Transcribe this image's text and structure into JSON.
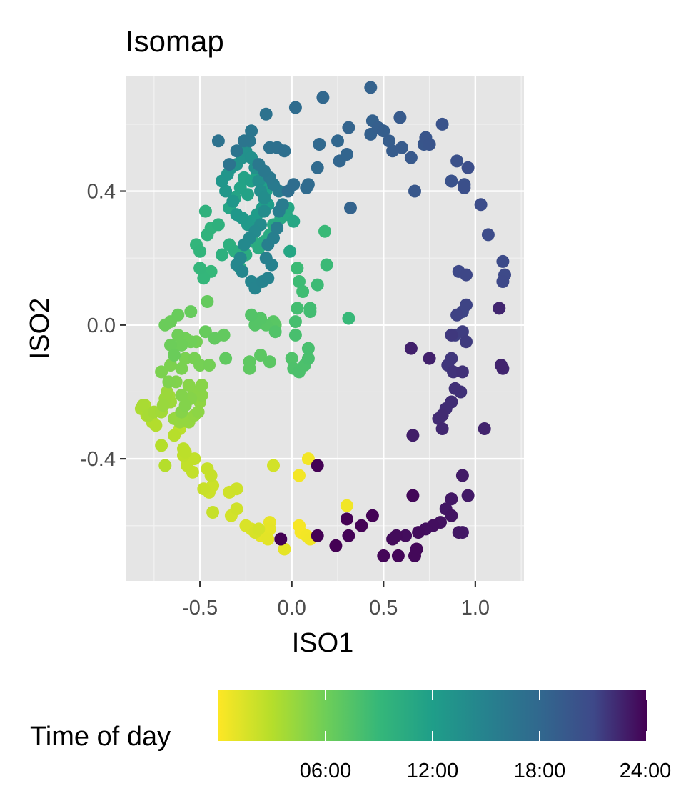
{
  "chart_data": {
    "type": "scatter",
    "title": "Isomap",
    "xlabel": "ISO1",
    "ylabel": "ISO2",
    "xlim": [
      -0.905,
      1.265
    ],
    "ylim": [
      -0.765,
      0.745
    ],
    "x_ticks": [
      -0.5,
      0.0,
      0.5,
      1.0
    ],
    "x_tick_labels": [
      "-0.5",
      "0.0",
      "0.5",
      "1.0"
    ],
    "y_ticks": [
      -0.4,
      0.0,
      0.4
    ],
    "y_tick_labels": [
      "-0.4",
      "0.0",
      "0.4"
    ],
    "grid": true,
    "background": "#e5e5e5",
    "legend": {
      "title": "Time of day",
      "position": "bottom",
      "type": "colorbar",
      "scale": "viridis (reversed: early = yellow, late = dark purple)",
      "range_hours": [
        0,
        24
      ],
      "breaks_hours": [
        6,
        12,
        18,
        24
      ],
      "break_labels": [
        "06:00",
        "12:00",
        "18:00",
        "24:00"
      ]
    },
    "colors": {
      "yellow": "#fde725",
      "green": "#22b85e",
      "teal": "#21908d",
      "blue": "#1e4e7f",
      "purple": "#440154"
    },
    "points_x_y_hour": [
      [
        0.04,
        -0.6,
        0.3
      ],
      [
        0.05,
        -0.62,
        0.3
      ],
      [
        0.08,
        -0.63,
        0.4
      ],
      [
        0.1,
        -0.64,
        0.5
      ],
      [
        0.09,
        -0.4,
        0.4
      ],
      [
        0.04,
        -0.45,
        0.4
      ],
      [
        0.3,
        -0.54,
        0.5
      ],
      [
        -0.12,
        -0.59,
        0.9
      ],
      [
        -0.12,
        -0.61,
        1.0
      ],
      [
        -0.17,
        -0.63,
        1.0
      ],
      [
        -0.04,
        -0.67,
        1.0
      ],
      [
        -0.13,
        -0.64,
        1.1
      ],
      [
        -0.22,
        -0.61,
        1.4
      ],
      [
        -0.25,
        -0.6,
        1.5
      ],
      [
        -0.2,
        -0.62,
        1.6
      ],
      [
        -0.18,
        -0.61,
        1.7
      ],
      [
        -0.1,
        -0.42,
        1.8
      ],
      [
        -0.33,
        -0.57,
        1.8
      ],
      [
        -0.3,
        -0.55,
        1.9
      ],
      [
        -0.34,
        -0.5,
        1.9
      ],
      [
        -0.3,
        -0.49,
        2.0
      ],
      [
        -0.43,
        -0.48,
        2.1
      ],
      [
        -0.45,
        -0.5,
        2.1
      ],
      [
        -0.48,
        -0.49,
        2.2
      ],
      [
        -0.44,
        -0.45,
        2.3
      ],
      [
        -0.43,
        -0.56,
        2.3
      ],
      [
        -0.46,
        -0.43,
        2.3
      ],
      [
        -0.54,
        -0.44,
        2.4
      ],
      [
        -0.57,
        -0.42,
        2.5
      ],
      [
        -0.53,
        -0.4,
        2.5
      ],
      [
        -0.59,
        -0.39,
        2.6
      ],
      [
        -0.58,
        -0.38,
        2.7
      ],
      [
        -0.59,
        -0.37,
        2.7
      ],
      [
        -0.61,
        -0.31,
        2.8
      ],
      [
        -0.64,
        -0.33,
        2.9
      ],
      [
        -0.69,
        -0.42,
        3.0
      ],
      [
        -0.71,
        -0.36,
        3.0
      ],
      [
        -0.74,
        -0.3,
        3.1
      ],
      [
        -0.76,
        -0.29,
        3.1
      ],
      [
        -0.79,
        -0.27,
        3.2
      ],
      [
        -0.8,
        -0.24,
        3.3
      ],
      [
        -0.82,
        -0.25,
        3.4
      ],
      [
        -0.81,
        -0.24,
        3.5
      ],
      [
        -0.78,
        -0.27,
        3.6
      ],
      [
        -0.75,
        -0.26,
        3.7
      ],
      [
        -0.71,
        -0.26,
        3.8
      ],
      [
        -0.67,
        -0.21,
        3.9
      ],
      [
        -0.66,
        -0.23,
        4.0
      ],
      [
        -0.68,
        -0.2,
        4.1
      ],
      [
        -0.69,
        -0.22,
        4.1
      ],
      [
        -0.7,
        -0.24,
        4.2
      ],
      [
        -0.64,
        -0.28,
        4.3
      ],
      [
        -0.61,
        -0.29,
        4.3
      ],
      [
        -0.59,
        -0.28,
        4.4
      ],
      [
        -0.56,
        -0.29,
        4.4
      ],
      [
        -0.53,
        -0.27,
        4.5
      ],
      [
        -0.5,
        -0.23,
        4.6
      ],
      [
        -0.51,
        -0.26,
        4.7
      ],
      [
        -0.49,
        -0.21,
        4.8
      ],
      [
        -0.53,
        -0.2,
        4.8
      ],
      [
        -0.56,
        -0.18,
        4.9
      ],
      [
        -0.49,
        -0.18,
        4.9
      ],
      [
        -0.55,
        -0.22,
        5.0
      ],
      [
        -0.6,
        -0.26,
        5.0
      ],
      [
        -0.58,
        -0.24,
        5.1
      ],
      [
        -0.6,
        -0.21,
        5.1
      ],
      [
        -0.63,
        -0.17,
        5.2
      ],
      [
        -0.67,
        -0.17,
        5.3
      ],
      [
        -0.71,
        -0.14,
        5.4
      ],
      [
        -0.66,
        -0.12,
        5.4
      ],
      [
        -0.6,
        -0.13,
        5.5
      ],
      [
        -0.58,
        -0.1,
        5.5
      ],
      [
        -0.53,
        -0.1,
        5.6
      ],
      [
        -0.5,
        -0.12,
        5.7
      ],
      [
        -0.45,
        -0.12,
        5.8
      ],
      [
        -0.52,
        -0.05,
        5.8
      ],
      [
        -0.55,
        -0.05,
        5.9
      ],
      [
        -0.58,
        -0.04,
        5.9
      ],
      [
        -0.6,
        -0.06,
        6.0
      ],
      [
        -0.62,
        -0.03,
        6.0
      ],
      [
        -0.66,
        -0.06,
        6.1
      ],
      [
        -0.64,
        -0.09,
        6.2
      ],
      [
        -0.69,
        0.0,
        6.2
      ],
      [
        -0.66,
        0.01,
        6.2
      ],
      [
        -0.62,
        0.03,
        6.3
      ],
      [
        -0.55,
        0.04,
        6.4
      ],
      [
        -0.47,
        -0.02,
        6.4
      ],
      [
        -0.46,
        0.07,
        6.5
      ],
      [
        -0.42,
        -0.04,
        6.6
      ],
      [
        -0.37,
        -0.03,
        6.6
      ],
      [
        -0.36,
        -0.1,
        6.7
      ],
      [
        -0.23,
        -0.13,
        6.8
      ],
      [
        -0.23,
        -0.11,
        6.8
      ],
      [
        -0.17,
        -0.09,
        6.9
      ],
      [
        -0.12,
        -0.11,
        7.0
      ],
      [
        -0.09,
        0.0,
        7.0
      ],
      [
        -0.1,
        0.01,
        7.1
      ],
      [
        -0.14,
        0.0,
        7.2
      ],
      [
        -0.17,
        0.02,
        7.3
      ],
      [
        -0.2,
        0.0,
        7.3
      ],
      [
        -0.22,
        0.03,
        7.4
      ],
      [
        -0.09,
        -0.02,
        7.5
      ],
      [
        0.0,
        -0.1,
        7.6
      ],
      [
        0.01,
        -0.13,
        7.7
      ],
      [
        0.04,
        -0.14,
        7.8
      ],
      [
        0.07,
        -0.12,
        7.8
      ],
      [
        0.09,
        -0.1,
        7.9
      ],
      [
        0.09,
        -0.07,
        8.0
      ],
      [
        0.02,
        -0.03,
        8.0
      ],
      [
        0.02,
        0.01,
        8.1
      ],
      [
        0.03,
        0.05,
        8.2
      ],
      [
        0.1,
        0.04,
        8.3
      ],
      [
        0.1,
        0.05,
        8.3
      ],
      [
        0.06,
        0.1,
        8.4
      ],
      [
        0.04,
        0.13,
        8.5
      ],
      [
        0.03,
        0.17,
        8.6
      ],
      [
        0.14,
        0.12,
        8.6
      ],
      [
        0.19,
        0.18,
        8.7
      ],
      [
        0.18,
        0.28,
        8.8
      ],
      [
        0.31,
        0.02,
        8.9
      ],
      [
        -0.44,
        0.16,
        9.0
      ],
      [
        -0.48,
        0.14,
        9.1
      ],
      [
        -0.5,
        0.17,
        9.2
      ],
      [
        -0.52,
        0.24,
        9.3
      ],
      [
        -0.5,
        0.22,
        9.4
      ],
      [
        -0.46,
        0.27,
        9.5
      ],
      [
        -0.44,
        0.29,
        9.6
      ],
      [
        -0.47,
        0.34,
        9.7
      ],
      [
        -0.4,
        0.3,
        9.8
      ],
      [
        -0.38,
        0.21,
        9.9
      ],
      [
        -0.34,
        0.24,
        10.0
      ],
      [
        -0.31,
        0.22,
        10.1
      ],
      [
        -0.28,
        0.17,
        10.2
      ],
      [
        -0.25,
        0.21,
        10.3
      ],
      [
        -0.21,
        0.25,
        10.3
      ],
      [
        -0.18,
        0.23,
        10.4
      ],
      [
        -0.15,
        0.25,
        10.5
      ],
      [
        -0.12,
        0.27,
        10.6
      ],
      [
        -0.1,
        0.3,
        10.7
      ],
      [
        -0.06,
        0.32,
        10.8
      ],
      [
        -0.03,
        0.33,
        10.9
      ],
      [
        -0.02,
        0.35,
        11.0
      ],
      [
        0.01,
        0.31,
        11.0
      ],
      [
        -0.01,
        0.22,
        11.1
      ],
      [
        -0.34,
        0.35,
        11.2
      ],
      [
        -0.31,
        0.38,
        11.3
      ],
      [
        -0.28,
        0.41,
        11.4
      ],
      [
        -0.26,
        0.44,
        11.5
      ],
      [
        -0.24,
        0.39,
        11.5
      ],
      [
        -0.22,
        0.43,
        11.6
      ],
      [
        -0.19,
        0.45,
        11.7
      ],
      [
        -0.16,
        0.42,
        11.7
      ],
      [
        -0.14,
        0.4,
        11.8
      ],
      [
        -0.12,
        0.42,
        11.9
      ],
      [
        -0.13,
        0.36,
        12.0
      ],
      [
        -0.16,
        0.35,
        12.1
      ],
      [
        -0.19,
        0.33,
        12.2
      ],
      [
        -0.22,
        0.31,
        12.3
      ],
      [
        -0.24,
        0.3,
        12.4
      ],
      [
        -0.27,
        0.32,
        12.5
      ],
      [
        -0.3,
        0.33,
        12.6
      ],
      [
        -0.32,
        0.37,
        12.7
      ],
      [
        -0.36,
        0.4,
        12.8
      ],
      [
        -0.38,
        0.43,
        12.9
      ],
      [
        -0.35,
        0.45,
        13.0
      ],
      [
        -0.33,
        0.47,
        13.1
      ],
      [
        -0.3,
        0.48,
        13.2
      ],
      [
        -0.27,
        0.5,
        13.3
      ],
      [
        -0.25,
        0.52,
        13.4
      ],
      [
        -0.22,
        0.5,
        13.5
      ],
      [
        -0.2,
        0.47,
        13.5
      ],
      [
        -0.18,
        0.43,
        13.6
      ],
      [
        -0.17,
        0.4,
        13.7
      ],
      [
        -0.15,
        0.38,
        13.8
      ],
      [
        -0.15,
        0.34,
        13.9
      ],
      [
        -0.17,
        0.3,
        14.0
      ],
      [
        -0.2,
        0.28,
        14.1
      ],
      [
        -0.23,
        0.26,
        14.2
      ],
      [
        -0.26,
        0.24,
        14.3
      ],
      [
        -0.28,
        0.2,
        14.4
      ],
      [
        -0.3,
        0.18,
        14.5
      ],
      [
        -0.27,
        0.16,
        14.6
      ],
      [
        -0.22,
        0.13,
        14.7
      ],
      [
        -0.2,
        0.11,
        14.8
      ],
      [
        -0.16,
        0.13,
        14.9
      ],
      [
        -0.13,
        0.14,
        15.0
      ],
      [
        -0.11,
        0.18,
        15.1
      ],
      [
        -0.14,
        0.2,
        15.2
      ],
      [
        -0.13,
        0.24,
        15.3
      ],
      [
        -0.1,
        0.26,
        15.4
      ],
      [
        -0.08,
        0.29,
        15.5
      ],
      [
        -0.07,
        0.34,
        15.6
      ],
      [
        -0.05,
        0.36,
        15.7
      ],
      [
        -0.07,
        0.4,
        15.8
      ],
      [
        -0.1,
        0.42,
        15.9
      ],
      [
        -0.12,
        0.44,
        16.0
      ],
      [
        -0.15,
        0.46,
        16.1
      ],
      [
        -0.18,
        0.48,
        16.2
      ],
      [
        -0.23,
        0.55,
        16.3
      ],
      [
        -0.22,
        0.58,
        16.4
      ],
      [
        -0.26,
        0.55,
        16.5
      ],
      [
        -0.3,
        0.52,
        16.6
      ],
      [
        -0.34,
        0.48,
        16.7
      ],
      [
        -0.4,
        0.55,
        16.8
      ],
      [
        -0.14,
        0.63,
        16.9
      ],
      [
        -0.12,
        0.53,
        17.0
      ],
      [
        -0.08,
        0.53,
        17.1
      ],
      [
        -0.04,
        0.52,
        17.2
      ],
      [
        -0.02,
        0.4,
        17.3
      ],
      [
        0.01,
        0.42,
        17.4
      ],
      [
        0.02,
        0.65,
        17.5
      ],
      [
        0.08,
        0.41,
        17.6
      ],
      [
        0.09,
        0.42,
        17.7
      ],
      [
        0.14,
        0.47,
        17.8
      ],
      [
        0.15,
        0.54,
        17.9
      ],
      [
        0.17,
        0.68,
        18.0
      ],
      [
        0.25,
        0.55,
        18.1
      ],
      [
        0.26,
        0.49,
        18.2
      ],
      [
        0.3,
        0.51,
        18.3
      ],
      [
        0.31,
        0.59,
        18.4
      ],
      [
        0.32,
        0.35,
        18.5
      ],
      [
        0.43,
        0.71,
        18.6
      ],
      [
        0.44,
        0.61,
        18.7
      ],
      [
        0.43,
        0.57,
        18.8
      ],
      [
        0.47,
        0.59,
        18.9
      ],
      [
        0.5,
        0.58,
        19.0
      ],
      [
        0.53,
        0.55,
        19.1
      ],
      [
        0.55,
        0.52,
        19.2
      ],
      [
        0.6,
        0.53,
        19.3
      ],
      [
        0.59,
        0.62,
        19.4
      ],
      [
        0.65,
        0.5,
        19.5
      ],
      [
        0.67,
        0.4,
        19.6
      ],
      [
        0.72,
        0.54,
        19.7
      ],
      [
        0.73,
        0.56,
        19.8
      ],
      [
        0.75,
        0.54,
        19.9
      ],
      [
        0.82,
        0.6,
        20.0
      ],
      [
        0.87,
        0.43,
        20.1
      ],
      [
        0.9,
        0.49,
        20.2
      ],
      [
        0.94,
        0.42,
        20.3
      ],
      [
        0.94,
        0.41,
        20.4
      ],
      [
        0.96,
        0.47,
        20.5
      ],
      [
        1.03,
        0.36,
        20.6
      ],
      [
        1.07,
        0.27,
        20.7
      ],
      [
        1.15,
        0.19,
        20.8
      ],
      [
        1.16,
        0.15,
        20.9
      ],
      [
        1.15,
        0.13,
        21.0
      ],
      [
        0.91,
        0.16,
        21.0
      ],
      [
        0.95,
        0.15,
        21.1
      ],
      [
        0.95,
        0.06,
        21.2
      ],
      [
        0.93,
        0.04,
        21.2
      ],
      [
        0.9,
        0.03,
        21.3
      ],
      [
        0.89,
        -0.03,
        21.4
      ],
      [
        0.93,
        -0.02,
        21.5
      ],
      [
        0.95,
        -0.05,
        21.6
      ],
      [
        0.87,
        -0.03,
        21.7
      ],
      [
        0.87,
        -0.1,
        21.8
      ],
      [
        0.85,
        -0.12,
        21.8
      ],
      [
        0.88,
        -0.14,
        21.9
      ],
      [
        0.93,
        -0.14,
        22.0
      ],
      [
        0.92,
        -0.2,
        22.0
      ],
      [
        0.89,
        -0.19,
        22.1
      ],
      [
        0.87,
        -0.23,
        22.2
      ],
      [
        0.84,
        -0.25,
        22.2
      ],
      [
        0.82,
        -0.27,
        22.3
      ],
      [
        0.8,
        -0.28,
        22.3
      ],
      [
        0.82,
        -0.31,
        22.4
      ],
      [
        1.13,
        0.05,
        22.5
      ],
      [
        1.15,
        -0.13,
        22.5
      ],
      [
        1.14,
        -0.12,
        22.6
      ],
      [
        1.05,
        -0.31,
        22.6
      ],
      [
        0.75,
        -0.1,
        22.7
      ],
      [
        0.65,
        -0.07,
        22.7
      ],
      [
        0.66,
        -0.33,
        22.8
      ],
      [
        0.93,
        -0.45,
        22.9
      ],
      [
        0.96,
        -0.51,
        23.0
      ],
      [
        0.87,
        -0.52,
        23.1
      ],
      [
        0.84,
        -0.55,
        23.1
      ],
      [
        0.87,
        -0.57,
        23.2
      ],
      [
        0.81,
        -0.59,
        23.3
      ],
      [
        0.77,
        -0.6,
        23.4
      ],
      [
        0.73,
        -0.61,
        23.4
      ],
      [
        0.69,
        -0.62,
        23.5
      ],
      [
        0.62,
        -0.63,
        23.5
      ],
      [
        0.57,
        -0.63,
        23.6
      ],
      [
        0.55,
        -0.64,
        23.6
      ],
      [
        0.68,
        -0.67,
        23.7
      ],
      [
        0.67,
        -0.69,
        23.7
      ],
      [
        0.58,
        -0.69,
        23.8
      ],
      [
        0.5,
        -0.69,
        23.8
      ],
      [
        0.44,
        -0.57,
        23.9
      ],
      [
        0.38,
        -0.6,
        23.9
      ],
      [
        0.31,
        -0.63,
        23.9
      ],
      [
        0.3,
        -0.58,
        24.0
      ],
      [
        0.24,
        -0.66,
        24.0
      ],
      [
        0.14,
        -0.63,
        24.0
      ],
      [
        -0.06,
        -0.64,
        24.0
      ],
      [
        0.14,
        -0.42,
        24.0
      ],
      [
        0.66,
        -0.51,
        23.7
      ],
      [
        0.93,
        -0.62,
        23.0
      ],
      [
        0.91,
        -0.62,
        23.1
      ]
    ]
  }
}
